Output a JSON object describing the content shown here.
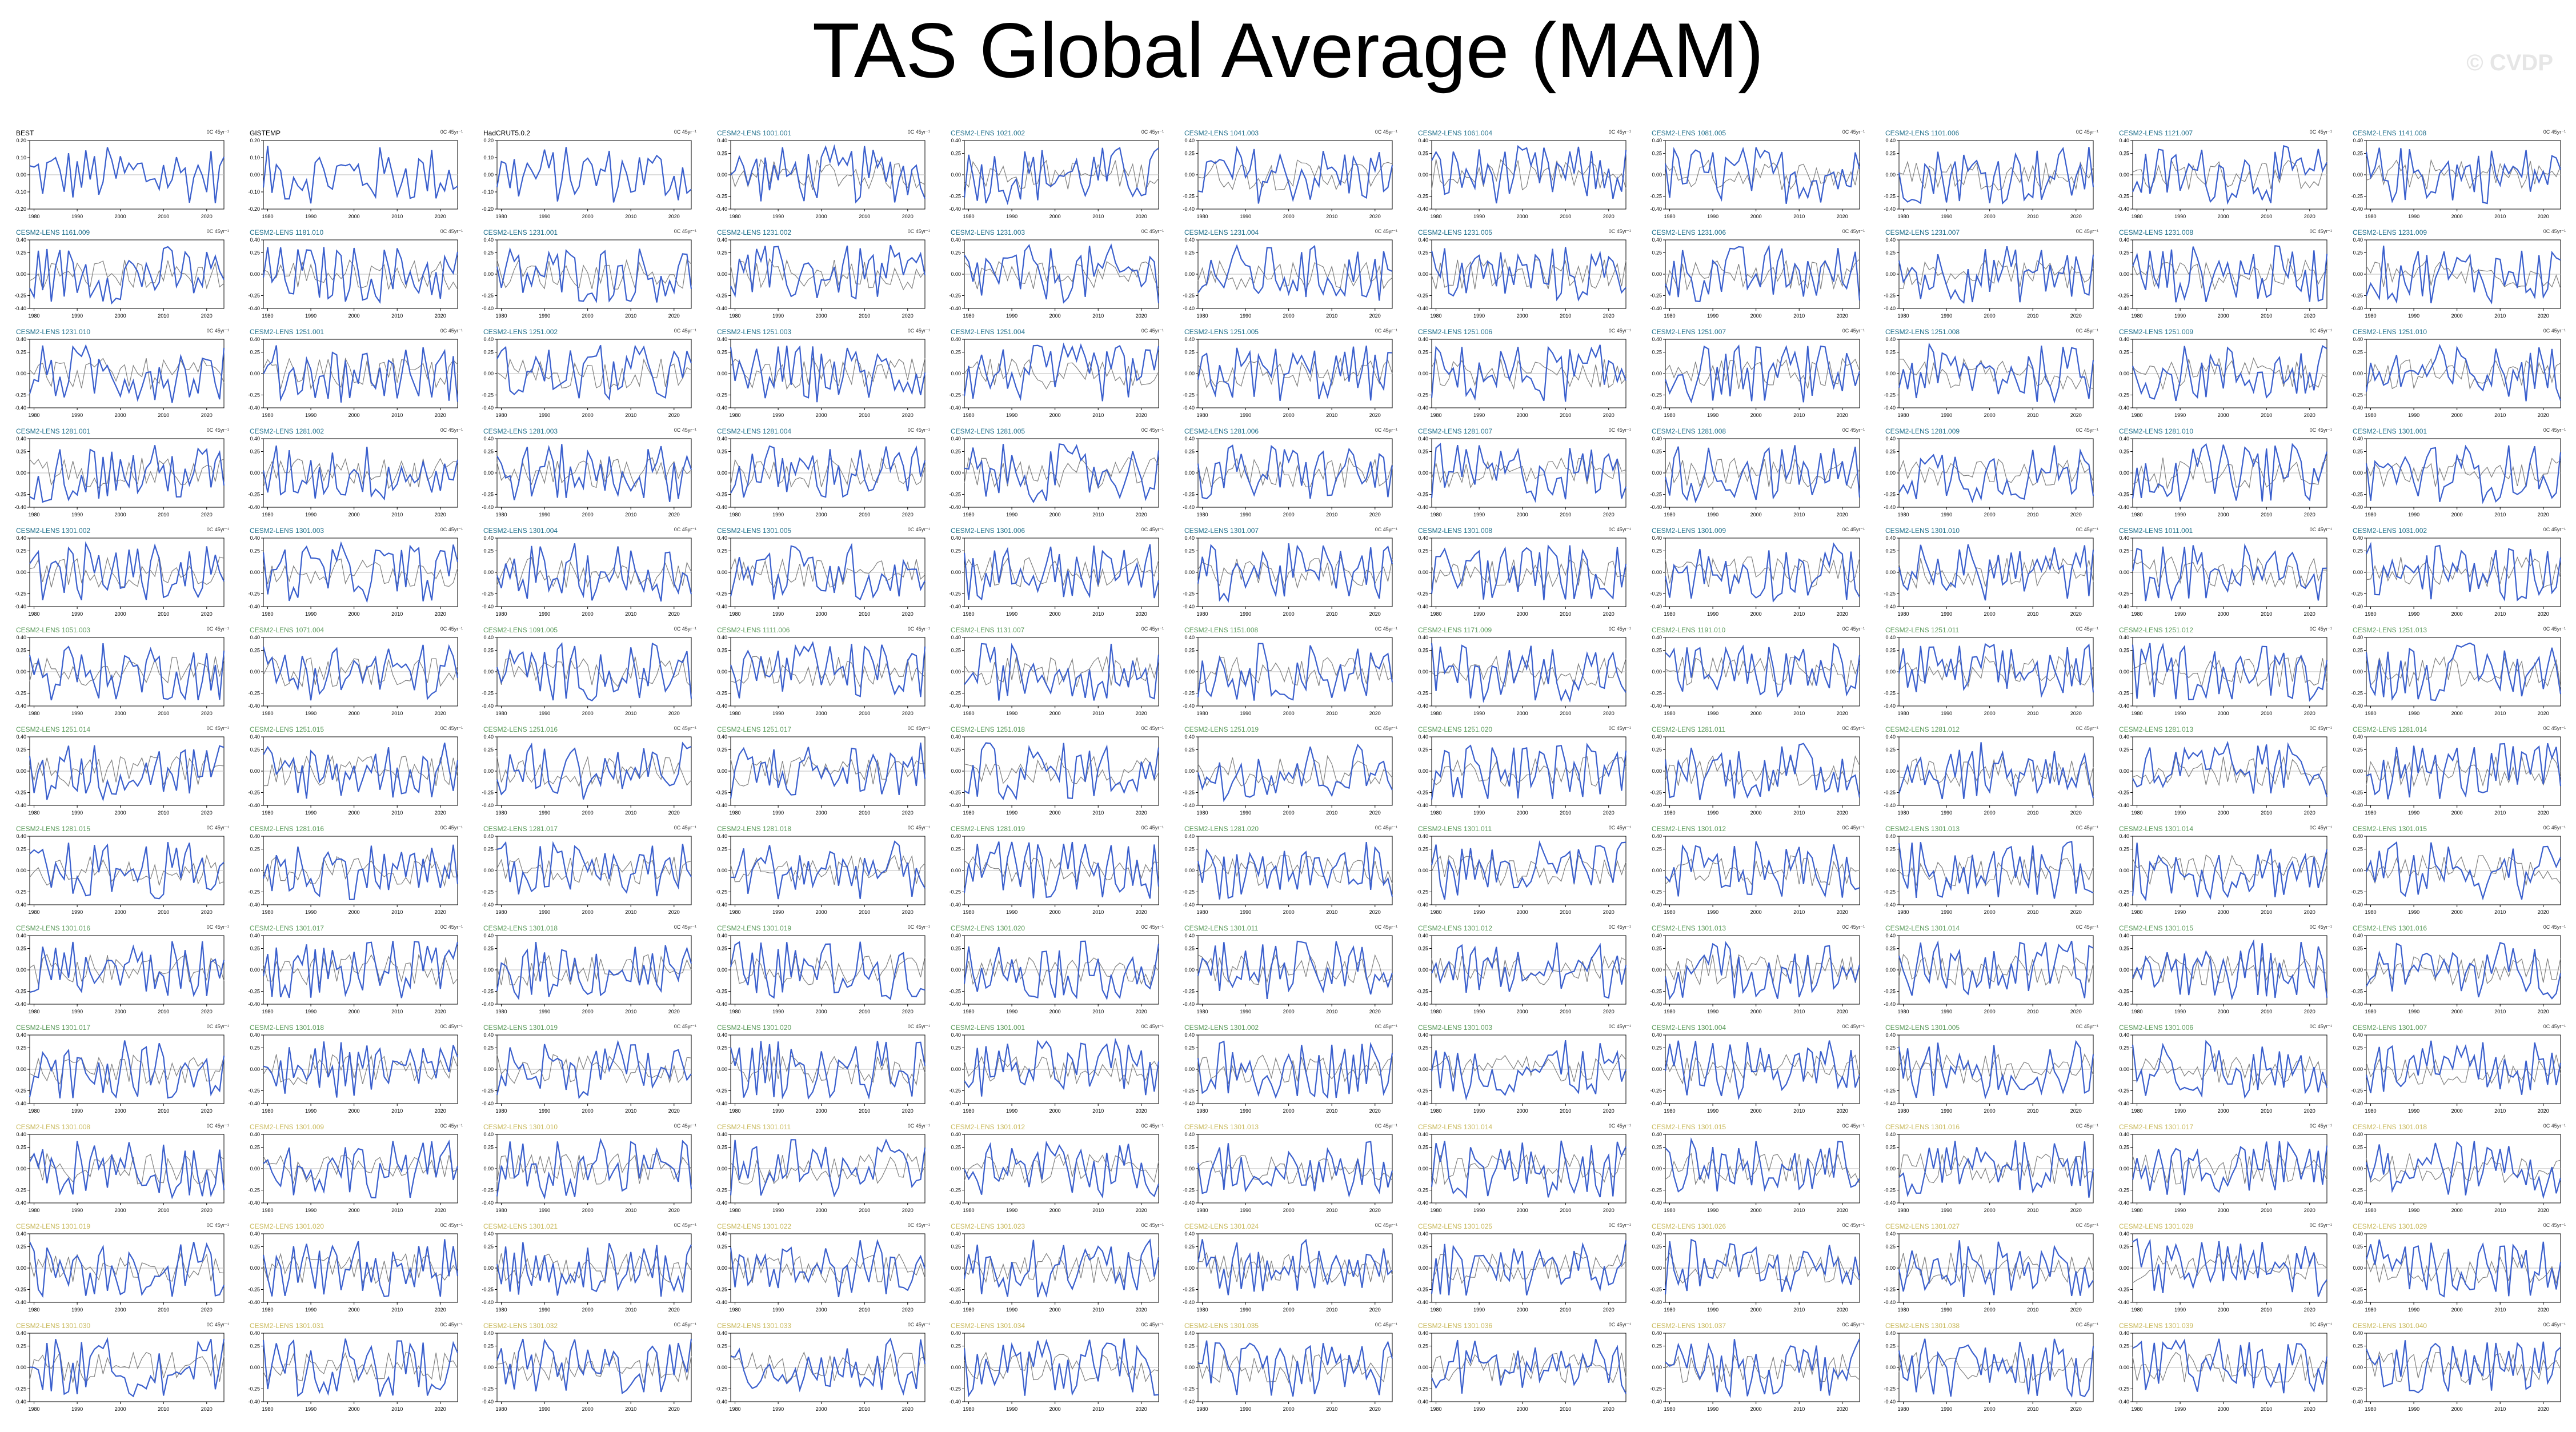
{
  "title": "TAS Global Average (MAM)",
  "watermark": "© CVDP",
  "colors": {
    "obs_title": "#000000",
    "member_title_cesm2": "#1f6f8b",
    "member_title_lens2": "#5a9a5a",
    "member_title_other": "#c8b85a",
    "model_line": "#3a5fcd",
    "running_mean": "#7f7f7f"
  },
  "chart_data": {
    "type": "line",
    "layout": "small-multiples",
    "x_ticks": [
      1980,
      1990,
      2000,
      2010,
      2020
    ],
    "x_range": [
      1979,
      2024
    ],
    "y_ticks_020": [
      -0.2,
      -0.1,
      0.0,
      0.1,
      0.2
    ],
    "y_ticks_040": [
      -0.4,
      -0.25,
      0.0,
      0.25,
      0.4
    ],
    "trend_label": "0C 45yr⁻¹",
    "panels": [
      "BEST",
      "GISTEMP",
      "HadCRUT5.0.2",
      "CESM2-LENS 1001.001",
      "CESM2-LENS 1021.002",
      "CESM2-LENS 1041.003",
      "CESM2-LENS 1061.004",
      "CESM2-LENS 1081.005",
      "CESM2-LENS 1101.006",
      "CESM2-LENS 1121.007",
      "CESM2-LENS 1141.008",
      "CESM2-LENS 1161.009",
      "CESM2-LENS 1181.010",
      "CESM2-LENS 1231.001",
      "CESM2-LENS 1231.002",
      "CESM2-LENS 1231.003",
      "CESM2-LENS 1231.004",
      "CESM2-LENS 1231.005",
      "CESM2-LENS 1231.006",
      "CESM2-LENS 1231.007",
      "CESM2-LENS 1231.008",
      "CESM2-LENS 1231.009",
      "CESM2-LENS 1231.010",
      "CESM2-LENS 1251.001",
      "CESM2-LENS 1251.002",
      "CESM2-LENS 1251.003",
      "CESM2-LENS 1251.004",
      "CESM2-LENS 1251.005",
      "CESM2-LENS 1251.006",
      "CESM2-LENS 1251.007",
      "CESM2-LENS 1251.008",
      "CESM2-LENS 1251.009",
      "CESM2-LENS 1251.010",
      "CESM2-LENS 1281.001",
      "CESM2-LENS 1281.002",
      "CESM2-LENS 1281.003",
      "CESM2-LENS 1281.004",
      "CESM2-LENS 1281.005",
      "CESM2-LENS 1281.006",
      "CESM2-LENS 1281.007",
      "CESM2-LENS 1281.008",
      "CESM2-LENS 1281.009",
      "CESM2-LENS 1281.010",
      "CESM2-LENS 1301.001",
      "CESM2-LENS 1301.002",
      "CESM2-LENS 1301.003",
      "CESM2-LENS 1301.004",
      "CESM2-LENS 1301.005",
      "CESM2-LENS 1301.006",
      "CESM2-LENS 1301.007",
      "CESM2-LENS 1301.008",
      "CESM2-LENS 1301.009",
      "CESM2-LENS 1301.010",
      "CESM2-LENS 1011.001",
      "CESM2-LENS 1031.002",
      "CESM2-LENS 1051.003",
      "CESM2-LENS 1071.004",
      "CESM2-LENS 1091.005",
      "CESM2-LENS 1111.006",
      "CESM2-LENS 1131.007",
      "CESM2-LENS 1151.008",
      "CESM2-LENS 1171.009",
      "CESM2-LENS 1191.010",
      "CESM2-LENS 1251.011",
      "CESM2-LENS 1251.012",
      "CESM2-LENS 1251.013",
      "CESM2-LENS 1251.014",
      "CESM2-LENS 1251.015",
      "CESM2-LENS 1251.016",
      "CESM2-LENS 1251.017",
      "CESM2-LENS 1251.018",
      "CESM2-LENS 1251.019",
      "CESM2-LENS 1251.020",
      "CESM2-LENS 1281.011",
      "CESM2-LENS 1281.012",
      "CESM2-LENS 1281.013",
      "CESM2-LENS 1281.014",
      "CESM2-LENS 1281.015",
      "CESM2-LENS 1281.016",
      "CESM2-LENS 1281.017",
      "CESM2-LENS 1281.018",
      "CESM2-LENS 1281.019",
      "CESM2-LENS 1281.020",
      "CESM2-LENS 1301.011",
      "CESM2-LENS 1301.012",
      "CESM2-LENS 1301.013",
      "CESM2-LENS 1301.014",
      "CESM2-LENS 1301.015",
      "CESM2-LENS 1301.016",
      "CESM2-LENS 1301.017",
      "CESM2-LENS 1301.018",
      "CESM2-LENS 1301.019",
      "CESM2-LENS 1301.020",
      "CESM2-LENS 1301.011",
      "CESM2-LENS 1301.012",
      "CESM2-LENS 1301.013",
      "CESM2-LENS 1301.014",
      "CESM2-LENS 1301.015",
      "CESM2-LENS 1301.016",
      "CESM2-LENS 1301.017",
      "CESM2-LENS 1301.018",
      "CESM2-LENS 1301.019",
      "CESM2-LENS 1301.020",
      "CESM2-LENS 1301.001",
      "CESM2-LENS 1301.002",
      "CESM2-LENS 1301.003",
      "CESM2-LENS 1301.004",
      "CESM2-LENS 1301.005",
      "CESM2-LENS 1301.006",
      "CESM2-LENS 1301.007",
      "CESM2-LENS 1301.008",
      "CESM2-LENS 1301.009",
      "CESM2-LENS 1301.010",
      "CESM2-LENS 1301.011",
      "CESM2-LENS 1301.012",
      "CESM2-LENS 1301.013",
      "CESM2-LENS 1301.014",
      "CESM2-LENS 1301.015",
      "CESM2-LENS 1301.016",
      "CESM2-LENS 1301.017",
      "CESM2-LENS 1301.018",
      "CESM2-LENS 1301.019",
      "CESM2-LENS 1301.020",
      "CESM2-LENS 1301.021",
      "CESM2-LENS 1301.022",
      "CESM2-LENS 1301.023",
      "CESM2-LENS 1301.024",
      "CESM2-LENS 1301.025",
      "CESM2-LENS 1301.026",
      "CESM2-LENS 1301.027",
      "CESM2-LENS 1301.028",
      "CESM2-LENS 1301.029",
      "CESM2-LENS 1301.030",
      "CESM2-LENS 1301.031",
      "CESM2-LENS 1301.032",
      "CESM2-LENS 1301.033",
      "CESM2-LENS 1301.034",
      "CESM2-LENS 1301.035",
      "CESM2-LENS 1301.036",
      "CESM2-LENS 1301.037",
      "CESM2-LENS 1301.038",
      "CESM2-LENS 1301.039",
      "CESM2-LENS 1301.040"
    ]
  }
}
